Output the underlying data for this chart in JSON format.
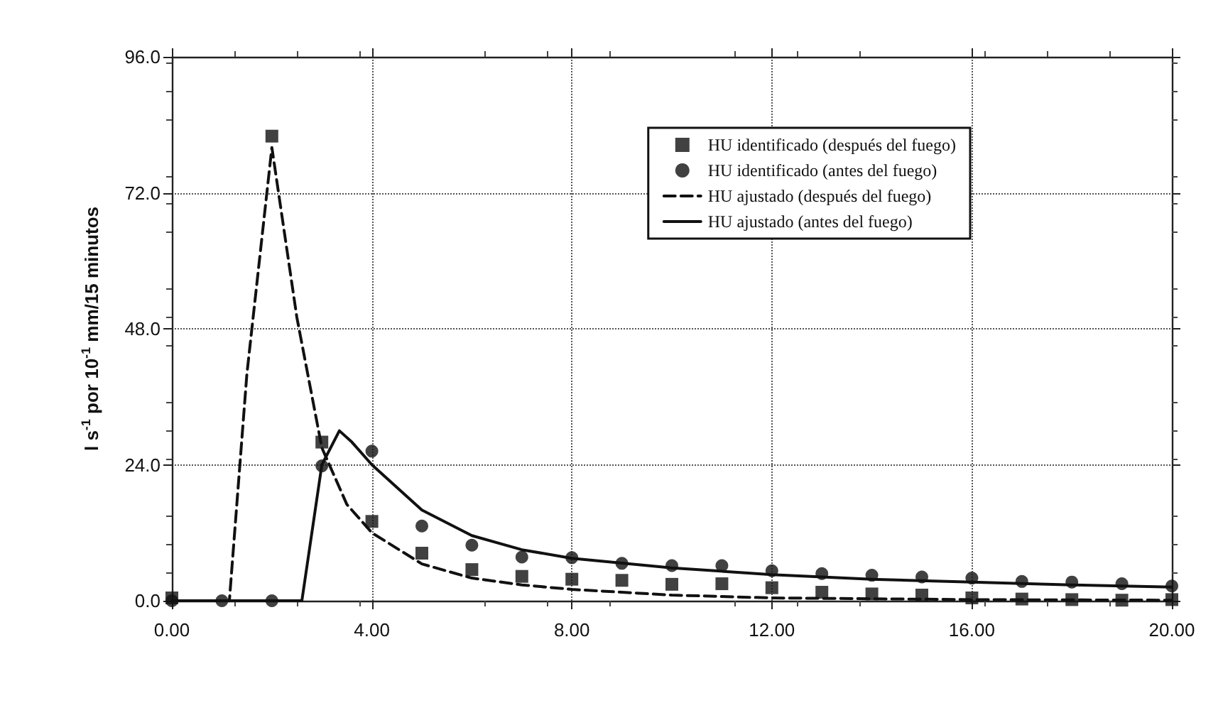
{
  "chart_data": {
    "type": "line",
    "ylabel": "l s$^{-1}$ por 10$^{-1}$ mm/15 minutos",
    "xlim": [
      0,
      20
    ],
    "xticks": [
      {
        "value": 0,
        "label": "0.00"
      },
      {
        "value": 4,
        "label": "4.00"
      },
      {
        "value": 8,
        "label": "8.00"
      },
      {
        "value": 12,
        "label": "12.00"
      },
      {
        "value": 16,
        "label": "16.00"
      },
      {
        "value": 20,
        "label": "20.00"
      }
    ],
    "ylim": [
      0,
      96
    ],
    "yticks": [
      {
        "value": 0,
        "label": "0.0"
      },
      {
        "value": 24,
        "label": "24.0"
      },
      {
        "value": 48,
        "label": "48.0"
      },
      {
        "value": 72,
        "label": "72.0"
      },
      {
        "value": 96,
        "label": "96.0"
      }
    ],
    "grid": true,
    "legend": "top right",
    "series": [
      {
        "name": "HU identificado (después del fuego)",
        "type": "scatter",
        "marker": "square",
        "color": "#111111",
        "x": [
          0,
          2,
          3,
          4,
          5,
          6,
          7,
          8,
          9,
          10,
          11,
          12,
          13,
          14,
          15,
          16,
          17,
          18,
          19,
          20
        ],
        "values": [
          0.5,
          82,
          28,
          14,
          8.4,
          5.5,
          4.3,
          3.8,
          3.6,
          2.9,
          3.0,
          2.3,
          1.5,
          1.2,
          1.0,
          0.5,
          0.3,
          0.2,
          0.1,
          0.2
        ]
      },
      {
        "name": "HU identificado (antes del fuego)",
        "type": "scatter",
        "marker": "circle",
        "color": "#111111",
        "x": [
          0,
          1,
          2,
          3,
          4,
          5,
          6,
          7,
          8,
          9,
          10,
          11,
          12,
          13,
          14,
          15,
          16,
          17,
          18,
          19,
          20
        ],
        "values": [
          0,
          0,
          0,
          23.8,
          26.4,
          13.2,
          9.8,
          7.7,
          7.6,
          6.6,
          6.2,
          6.2,
          5.3,
          4.8,
          4.5,
          4.2,
          4.0,
          3.4,
          3.3,
          3.0,
          2.6
        ]
      },
      {
        "name": "HU ajustado (después del fuego)",
        "type": "line",
        "line_style": "dashed",
        "marker": "none",
        "color": "#111111",
        "x": [
          0,
          1.15,
          1.5,
          2.0,
          2.5,
          3.0,
          3.5,
          4,
          5,
          6,
          7,
          8,
          10,
          12,
          16,
          20
        ],
        "values": [
          0,
          0,
          40,
          80,
          50,
          27,
          17,
          12,
          6.5,
          4,
          2.8,
          2,
          1,
          0.5,
          0.2,
          0.1
        ]
      },
      {
        "name": "HU ajustado (antes del fuego)",
        "type": "line",
        "line_style": "solid",
        "marker": "none",
        "color": "#111111",
        "x": [
          0,
          2.6,
          3.0,
          3.35,
          3.6,
          4,
          5,
          6,
          7,
          8,
          10,
          12,
          14,
          16,
          18,
          20
        ],
        "values": [
          0,
          0,
          24,
          30,
          28,
          24,
          16,
          11.5,
          9,
          7.5,
          5.8,
          4.6,
          3.8,
          3.3,
          2.8,
          2.4
        ]
      }
    ]
  }
}
